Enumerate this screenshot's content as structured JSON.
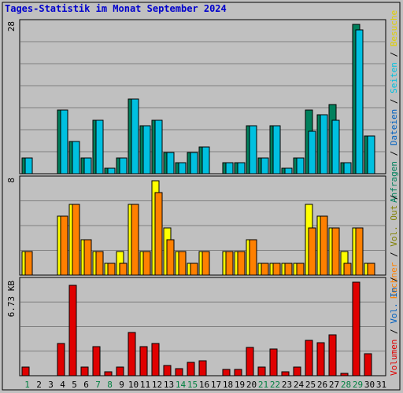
{
  "title": "Tages-Statistik im Monat September 2024",
  "colors": {
    "background": "#c0c0c0",
    "grid": "#808080",
    "anfragen": "#00805c",
    "dateien": "#00c0e0",
    "seiten": "#00c0e0",
    "besuche": "#ffff00",
    "rechner": "#ff8000",
    "volumen": "#e00000",
    "weekday_text": "#000000",
    "weekend_text": "#008040"
  },
  "chart_data": [
    {
      "type": "bar",
      "panel": "top",
      "ylabel_max": "28",
      "ymax": 28,
      "categories": [
        "1",
        "2",
        "3",
        "4",
        "5",
        "6",
        "7",
        "8",
        "9",
        "10",
        "11",
        "12",
        "13",
        "14",
        "15",
        "16",
        "17",
        "18",
        "19",
        "20",
        "21",
        "22",
        "23",
        "24",
        "25",
        "26",
        "27",
        "28",
        "29",
        "30",
        "31"
      ],
      "series": [
        {
          "name": "Anfragen",
          "values": [
            3,
            0,
            0,
            12,
            6,
            3,
            10,
            1,
            3,
            14,
            9,
            10,
            4,
            2,
            4,
            5,
            0,
            2,
            2,
            9,
            3,
            9,
            1,
            3,
            12,
            11,
            13,
            2,
            28,
            7,
            0
          ]
        },
        {
          "name": "Dateien",
          "values": [
            3,
            0,
            0,
            12,
            6,
            3,
            10,
            1,
            3,
            14,
            9,
            10,
            4,
            2,
            4,
            5,
            0,
            2,
            2,
            9,
            3,
            9,
            1,
            3,
            8,
            11,
            10,
            2,
            27,
            7,
            0
          ]
        }
      ]
    },
    {
      "type": "bar",
      "panel": "middle",
      "ylabel_max": "8",
      "ymax": 8,
      "categories": [
        "1",
        "2",
        "3",
        "4",
        "5",
        "6",
        "7",
        "8",
        "9",
        "10",
        "11",
        "12",
        "13",
        "14",
        "15",
        "16",
        "17",
        "18",
        "19",
        "20",
        "21",
        "22",
        "23",
        "24",
        "25",
        "26",
        "27",
        "28",
        "29",
        "30",
        "31"
      ],
      "series": [
        {
          "name": "Besuche",
          "values": [
            2,
            0,
            0,
            5,
            6,
            3,
            2,
            1,
            2,
            6,
            2,
            8,
            4,
            2,
            1,
            2,
            0,
            2,
            2,
            3,
            1,
            1,
            1,
            1,
            6,
            5,
            4,
            2,
            4,
            1,
            0
          ]
        },
        {
          "name": "Rechner",
          "values": [
            2,
            0,
            0,
            5,
            6,
            3,
            2,
            1,
            1,
            6,
            2,
            7,
            3,
            2,
            1,
            2,
            0,
            2,
            2,
            3,
            1,
            1,
            1,
            1,
            4,
            5,
            4,
            1,
            4,
            1,
            0
          ]
        }
      ]
    },
    {
      "type": "bar",
      "panel": "bottom",
      "ylabel_max": "6.73 KB",
      "ymax": 6.73,
      "categories": [
        "1",
        "2",
        "3",
        "4",
        "5",
        "6",
        "7",
        "8",
        "9",
        "10",
        "11",
        "12",
        "13",
        "14",
        "15",
        "16",
        "17",
        "18",
        "19",
        "20",
        "21",
        "22",
        "23",
        "24",
        "25",
        "26",
        "27",
        "28",
        "29",
        "30",
        "31"
      ],
      "series": [
        {
          "name": "Volumen",
          "values": [
            0.65,
            0,
            0,
            2.3,
            6.5,
            0.6,
            2.1,
            0.3,
            0.65,
            3.1,
            2.1,
            2.3,
            0.75,
            0.5,
            0.95,
            1.1,
            0,
            0.45,
            0.45,
            2.05,
            0.6,
            1.95,
            0.3,
            0.6,
            2.55,
            2.35,
            2.95,
            0.15,
            6.73,
            1.6,
            0
          ]
        }
      ]
    }
  ],
  "weekend_days": [
    1,
    7,
    8,
    14,
    15,
    21,
    22,
    28,
    29
  ],
  "side_labels": {
    "top": [
      {
        "text": "Anfragen",
        "color": "#00805c"
      },
      {
        "text": " / ",
        "color": "#000000"
      },
      {
        "text": "Dateien",
        "color": "#0060c0"
      },
      {
        "text": " / ",
        "color": "#000000"
      },
      {
        "text": "Seiten",
        "color": "#00c0e0"
      },
      {
        "text": " / ",
        "color": "#000000"
      },
      {
        "text": "Besuche",
        "color": "#e0d000"
      }
    ],
    "middle": [
      {
        "text": "Rechner",
        "color": "#ff8000"
      },
      {
        "text": " / ",
        "color": "#000000"
      },
      {
        "text": "Vol. Out",
        "color": "#808000"
      },
      {
        "text": " / ",
        "color": "#000000"
      }
    ],
    "bottom": [
      {
        "text": "Volumen",
        "color": "#e00000"
      },
      {
        "text": " / ",
        "color": "#000000"
      },
      {
        "text": "Vol. In",
        "color": "#0060c0"
      },
      {
        "text": " / ",
        "color": "#000000"
      }
    ]
  }
}
